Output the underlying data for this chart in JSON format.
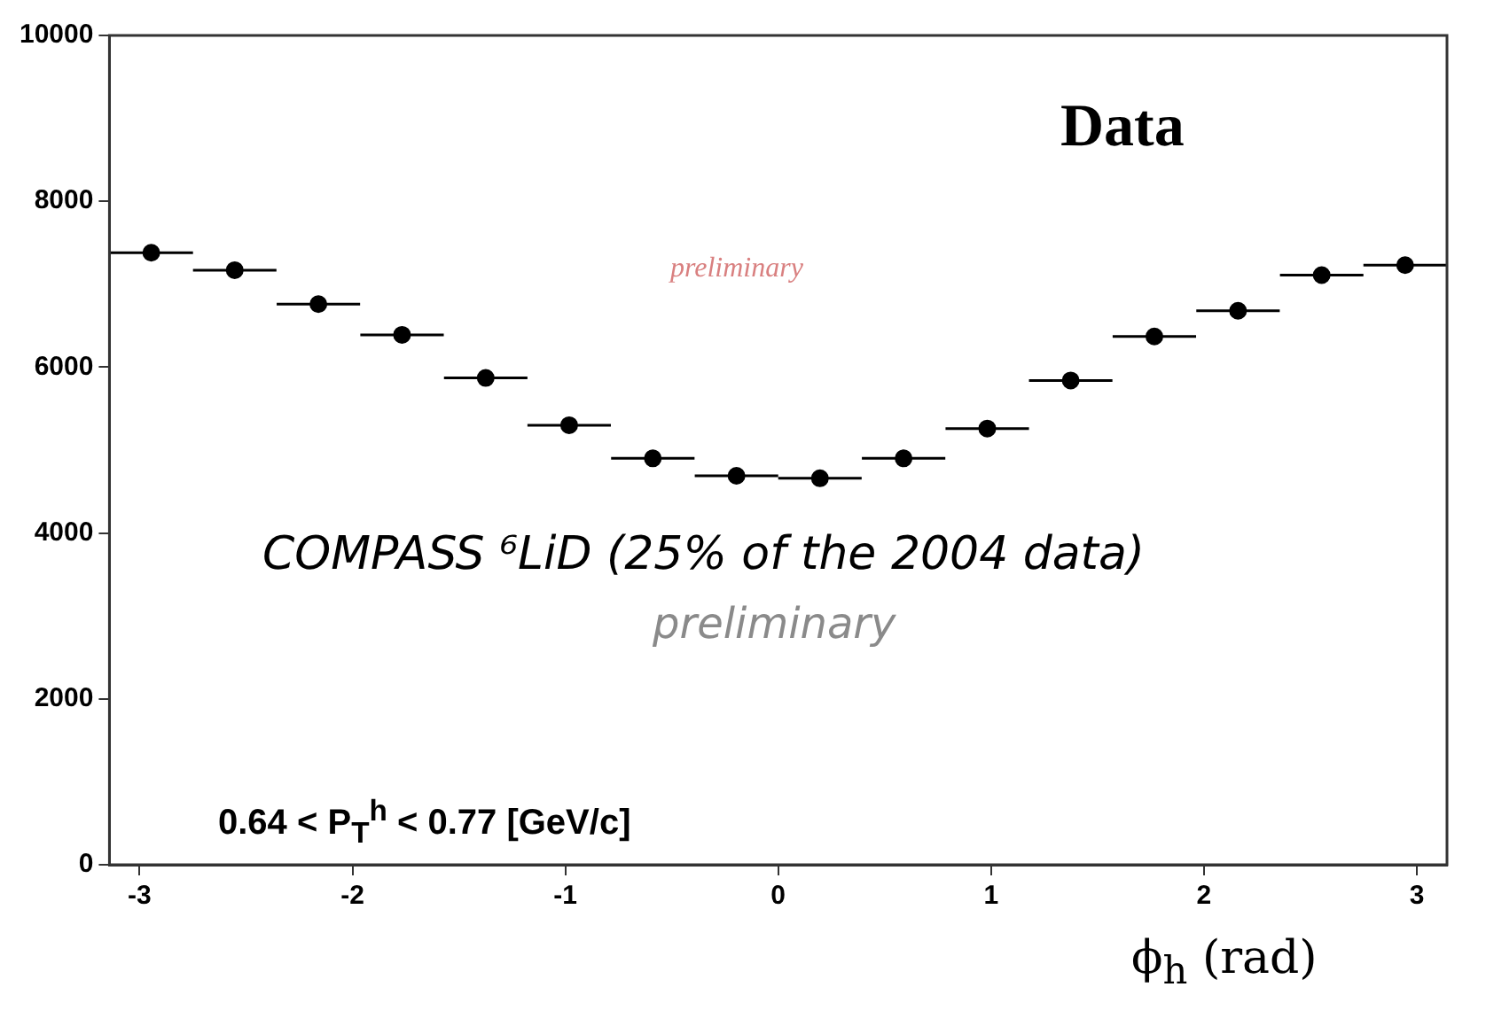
{
  "chart_data": {
    "type": "scatter",
    "xlabel": "ϕ$_{h}$ (rad)",
    "x": [
      -2.945,
      -2.553,
      -2.16,
      -1.767,
      -1.374,
      -0.982,
      -0.589,
      -0.196,
      0.196,
      0.589,
      0.982,
      1.374,
      1.767,
      2.16,
      2.553,
      2.945
    ],
    "series": [
      {
        "color": "#000000",
        "values": [
          7380,
          7170,
          6760,
          6390,
          5870,
          5300,
          4900,
          4690,
          4660,
          4900,
          5260,
          5840,
          6370,
          6680,
          7110,
          7230
        ],
        "xerrors": [
          0.196,
          0.196,
          0.196,
          0.196,
          0.196,
          0.196,
          0.196,
          0.196,
          0.196,
          0.196,
          0.196,
          0.196,
          0.196,
          0.196,
          0.196,
          0.196
        ]
      }
    ],
    "xlim": [
      -3.1416,
      3.1416
    ],
    "xticks": [
      -3,
      -2,
      -1,
      0,
      1,
      2,
      3
    ],
    "ylim": [
      0,
      10000
    ],
    "yticks": [
      0,
      2000,
      4000,
      6000,
      8000,
      10000
    ],
    "marker": "circle",
    "grid": false,
    "legend": false,
    "annotations": [
      "Data",
      "preliminary",
      "COMPASS ⁶LiD (25% of the 2004 data)",
      "preliminary",
      "0.64 < P$_{T}$$^{h}$ < 0.77  [GeV/c]"
    ]
  }
}
